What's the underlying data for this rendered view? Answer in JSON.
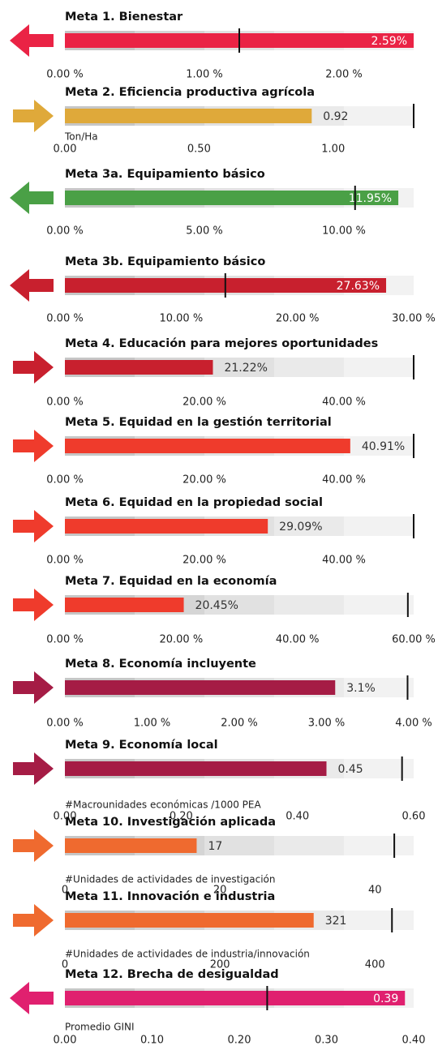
{
  "chart_data": [
    {
      "type": "bullet",
      "title": "Meta 1. Bienestar",
      "arrow": "left",
      "color": "#ea2345",
      "value": 2.59,
      "value_label": "2.59%",
      "label_position": "inside",
      "target": 1.25,
      "xlim": [
        0,
        2.5
      ],
      "ranges": [
        0.5,
        1,
        1.5,
        2,
        2.5
      ],
      "xticks": [
        {
          "value": 0,
          "label": "0.00 %"
        },
        {
          "value": 1,
          "label": "1.00 %"
        },
        {
          "value": 2,
          "label": "2.00 %"
        }
      ]
    },
    {
      "type": "bullet",
      "title": "Meta 2. Eficiencia productiva agrícola",
      "arrow": "right",
      "color": "#dfa93a",
      "value": 0.92,
      "value_label": "0.92",
      "label_position": "outside",
      "target": 1.3,
      "unit": "Ton/Ha",
      "xlim": [
        0,
        1.3
      ],
      "ranges": [
        0.26,
        0.52,
        0.78,
        1.04,
        1.3
      ],
      "xticks": [
        {
          "value": 0,
          "label": "0.00"
        },
        {
          "value": 0.5,
          "label": "0.50"
        },
        {
          "value": 1,
          "label": "1.00"
        }
      ]
    },
    {
      "type": "bullet",
      "title": "Meta 3a. Equipamiento básico",
      "arrow": "left",
      "color": "#4aa046",
      "value": 11.95,
      "value_label": "11.95%",
      "label_position": "inside",
      "target": 10.4,
      "xlim": [
        0,
        12.5
      ],
      "ranges": [
        2.5,
        5,
        7.5,
        10,
        12.5
      ],
      "xticks": [
        {
          "value": 0,
          "label": "0.00 %"
        },
        {
          "value": 5,
          "label": "5.00 %"
        },
        {
          "value": 10,
          "label": "10.00 %"
        }
      ]
    },
    {
      "type": "bullet",
      "title": "Meta 3b. Equipamiento básico",
      "arrow": "left",
      "color": "#c8202e",
      "value": 27.63,
      "value_label": "27.63%",
      "label_position": "inside",
      "target": 13.8,
      "xlim": [
        0,
        30
      ],
      "ranges": [
        6,
        12,
        18,
        24,
        30
      ],
      "xticks": [
        {
          "value": 0,
          "label": "0.00 %"
        },
        {
          "value": 10,
          "label": "10.00 %"
        },
        {
          "value": 20,
          "label": "20.00 %"
        },
        {
          "value": 30,
          "label": "30.00 %"
        }
      ]
    },
    {
      "type": "bullet",
      "title": "Meta 4. Educación para mejores oportunidades",
      "arrow": "right",
      "color": "#c8202e",
      "value": 21.22,
      "value_label": "21.22%",
      "label_position": "outside",
      "target": 50,
      "xlim": [
        0,
        50
      ],
      "ranges": [
        10,
        20,
        30,
        40,
        50
      ],
      "xticks": [
        {
          "value": 0,
          "label": "0.00 %"
        },
        {
          "value": 20,
          "label": "20.00 %"
        },
        {
          "value": 40,
          "label": "40.00 %"
        }
      ]
    },
    {
      "type": "bullet",
      "title": "Meta 5. Equidad en la gestión territorial",
      "arrow": "right",
      "color": "#ef3b2c",
      "value": 40.91,
      "value_label": "40.91%",
      "label_position": "outside",
      "target": 50,
      "xlim": [
        0,
        50
      ],
      "ranges": [
        10,
        20,
        30,
        40,
        50
      ],
      "xticks": [
        {
          "value": 0,
          "label": "0.00 %"
        },
        {
          "value": 20,
          "label": "20.00 %"
        },
        {
          "value": 40,
          "label": "40.00 %"
        }
      ]
    },
    {
      "type": "bullet",
      "title": "Meta 6. Equidad en la propiedad social",
      "arrow": "right",
      "color": "#ef3b2c",
      "value": 29.09,
      "value_label": "29.09%",
      "label_position": "outside",
      "target": 50,
      "xlim": [
        0,
        50
      ],
      "ranges": [
        10,
        20,
        30,
        40,
        50
      ],
      "xticks": [
        {
          "value": 0,
          "label": "0.00 %"
        },
        {
          "value": 20,
          "label": "20.00 %"
        },
        {
          "value": 40,
          "label": "40.00 %"
        }
      ]
    },
    {
      "type": "bullet",
      "title": "Meta 7. Equidad en la economía",
      "arrow": "right",
      "color": "#ef3b2c",
      "value": 20.45,
      "value_label": "20.45%",
      "label_position": "outside",
      "target": 59,
      "xlim": [
        0,
        60
      ],
      "ranges": [
        12,
        24,
        36,
        48,
        60
      ],
      "xticks": [
        {
          "value": 0,
          "label": "0.00 %"
        },
        {
          "value": 20,
          "label": "20.00 %"
        },
        {
          "value": 40,
          "label": "40.00 %"
        },
        {
          "value": 60,
          "label": "60.00 %"
        }
      ]
    },
    {
      "type": "bullet",
      "title": "Meta 8. Economía incluyente",
      "arrow": "right",
      "color": "#a51c45",
      "value": 3.1,
      "value_label": "3.1%",
      "label_position": "outside",
      "target": 3.93,
      "xlim": [
        0,
        4
      ],
      "ranges": [
        0.8,
        1.6,
        2.4,
        3.2,
        4
      ],
      "xticks": [
        {
          "value": 0,
          "label": "0.00 %"
        },
        {
          "value": 1,
          "label": "1.00 %"
        },
        {
          "value": 2,
          "label": "2.00 %"
        },
        {
          "value": 3,
          "label": "3.00 %"
        },
        {
          "value": 4,
          "label": "4.00 %"
        }
      ]
    },
    {
      "type": "bullet",
      "title": "Meta 9. Economía local",
      "arrow": "right",
      "color": "#a51c45",
      "value": 0.45,
      "value_label": "0.45",
      "label_position": "outside",
      "target": 0.58,
      "unit": "#Macrounidades económicas /1000 PEA",
      "xlim": [
        0,
        0.6
      ],
      "ranges": [
        0.12,
        0.24,
        0.36,
        0.48,
        0.6
      ],
      "xticks": [
        {
          "value": 0,
          "label": "0.00"
        },
        {
          "value": 0.2,
          "label": "0.20"
        },
        {
          "value": 0.4,
          "label": "0.40"
        },
        {
          "value": 0.6,
          "label": "0.60"
        }
      ]
    },
    {
      "type": "bullet",
      "title": "Meta 10. Investigación aplicada",
      "arrow": "right",
      "color": "#ef6a2f",
      "value": 17,
      "label_position": "outside",
      "target": 42.5,
      "unit": "#Unidades de actividades de investigación",
      "xlim": [
        0,
        45
      ],
      "ranges": [
        9,
        18,
        27,
        36,
        45
      ],
      "xticks": [
        0,
        20,
        40
      ]
    },
    {
      "type": "bullet",
      "title": "Meta 11.  Innovación e industria",
      "arrow": "right",
      "color": "#ef6a2f",
      "value": 321,
      "label_position": "outside",
      "target": 422,
      "unit": "#Unidades de actividades de industria/innovación",
      "xlim": [
        0,
        450
      ],
      "ranges": [
        90,
        180,
        270,
        360,
        450
      ],
      "xticks": [
        0,
        200,
        400
      ]
    },
    {
      "type": "bullet",
      "title": "Meta 12. Brecha de desigualdad",
      "arrow": "left",
      "color": "#e0206f",
      "value": 0.39,
      "value_label": "0.39",
      "label_position": "inside",
      "target": 0.232,
      "unit": "Promedio GINI",
      "xlim": [
        0,
        0.4
      ],
      "ranges": [
        0.08,
        0.16,
        0.24,
        0.32,
        0.4
      ],
      "xticks": [
        {
          "value": 0,
          "label": "0.00"
        },
        {
          "value": 0.1,
          "label": "0.10"
        },
        {
          "value": 0.2,
          "label": "0.20"
        },
        {
          "value": 0.3,
          "label": "0.30"
        },
        {
          "value": 0.4,
          "label": "0.40"
        }
      ]
    }
  ]
}
